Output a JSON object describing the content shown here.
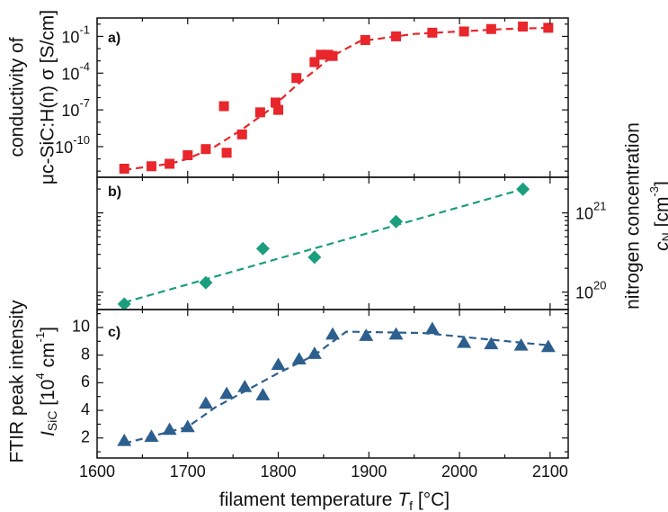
{
  "chart_data": [
    {
      "panel": "a)",
      "type": "scatter",
      "ylabel_line1": "conductivity of",
      "ylabel_line2": "μc-SiC:H(n) σ [S/cm]",
      "yscale": "log",
      "ylim_log10": [
        -12.5,
        0.5
      ],
      "ytick_labels": [
        {
          "exp": -10,
          "base": "10",
          "sup": "-10"
        },
        {
          "exp": -7,
          "base": "10",
          "sup": "-7"
        },
        {
          "exp": -4,
          "base": "10",
          "sup": "-4"
        },
        {
          "exp": -1,
          "base": "10",
          "sup": "-1"
        }
      ],
      "marker": "square",
      "color": "#e8262b",
      "x": [
        1630,
        1660,
        1680,
        1700,
        1720,
        1740,
        1743,
        1760,
        1780,
        1797,
        1800,
        1820,
        1840,
        1847,
        1855,
        1860,
        1896,
        1930,
        1970,
        2005,
        2035,
        2070,
        2098
      ],
      "log10_y": [
        -11.8,
        -11.6,
        -11.4,
        -10.7,
        -10.2,
        -6.7,
        -10.5,
        -9.0,
        -7.2,
        -6.4,
        -7.0,
        -4.4,
        -3.1,
        -2.5,
        -2.5,
        -2.6,
        -1.3,
        -1.0,
        -0.7,
        -0.6,
        -0.4,
        -0.2,
        -0.3
      ],
      "fit_x": [
        1630,
        1680,
        1700,
        1730,
        1760,
        1790,
        1820,
        1840,
        1860,
        1890,
        1950,
        2050,
        2100
      ],
      "fit_log10_y": [
        -11.9,
        -11.4,
        -11.0,
        -10.0,
        -8.6,
        -7.0,
        -5.0,
        -3.8,
        -2.6,
        -1.4,
        -0.8,
        -0.4,
        -0.3
      ]
    },
    {
      "panel": "b)",
      "type": "scatter",
      "ylabel_line1": "nitrogen concentration",
      "ylabel_line2": "c_N [cm^-3]",
      "yscale": "log",
      "ylim_log10": [
        19.78,
        21.45
      ],
      "ytick_labels": [
        {
          "exp": 20,
          "base": "10",
          "sup": "20"
        },
        {
          "exp": 21,
          "base": "10",
          "sup": "21"
        }
      ],
      "marker": "diamond",
      "color": "#1a9e7e",
      "x": [
        1630,
        1720,
        1783,
        1840,
        1930,
        2070
      ],
      "log10_y": [
        19.85,
        20.12,
        20.55,
        20.44,
        20.89,
        21.3
      ],
      "fit_x": [
        1630,
        2070
      ],
      "fit_log10_y": [
        19.87,
        21.3
      ]
    },
    {
      "panel": "c)",
      "type": "scatter",
      "ylabel_line1": "FTIR peak intensity",
      "ylabel_line2": "I_SiC [10^4 cm^-1]",
      "ylim": [
        0.55,
        11.3
      ],
      "yticks": [
        2,
        4,
        6,
        8,
        10
      ],
      "marker": "triangle",
      "color": "#2d5f8e",
      "x": [
        1630,
        1660,
        1680,
        1700,
        1720,
        1743,
        1763,
        1783,
        1800,
        1823,
        1840,
        1860,
        1897,
        1930,
        1970,
        2005,
        2035,
        2068,
        2098
      ],
      "y": [
        1.8,
        2.1,
        2.6,
        2.8,
        4.5,
        5.2,
        5.7,
        5.1,
        7.3,
        7.7,
        8.1,
        9.5,
        9.4,
        9.5,
        9.9,
        8.9,
        8.8,
        8.7,
        8.6
      ],
      "fit_x": [
        1630,
        1700,
        1730,
        1800,
        1840,
        1875,
        1960,
        2100
      ],
      "fit_y": [
        1.6,
        2.8,
        4.2,
        6.7,
        8.0,
        9.7,
        9.6,
        8.7
      ]
    }
  ],
  "x_axis": {
    "label_prefix": "filament temperature ",
    "label_var": "T",
    "label_sub": "f",
    "label_suffix": " [°C]",
    "ticks": [
      1600,
      1700,
      1800,
      1900,
      2000,
      2100
    ],
    "xlim": [
      1600,
      2120
    ]
  },
  "style": {
    "fit_dash": "8,5",
    "frame_color": "#111111"
  }
}
